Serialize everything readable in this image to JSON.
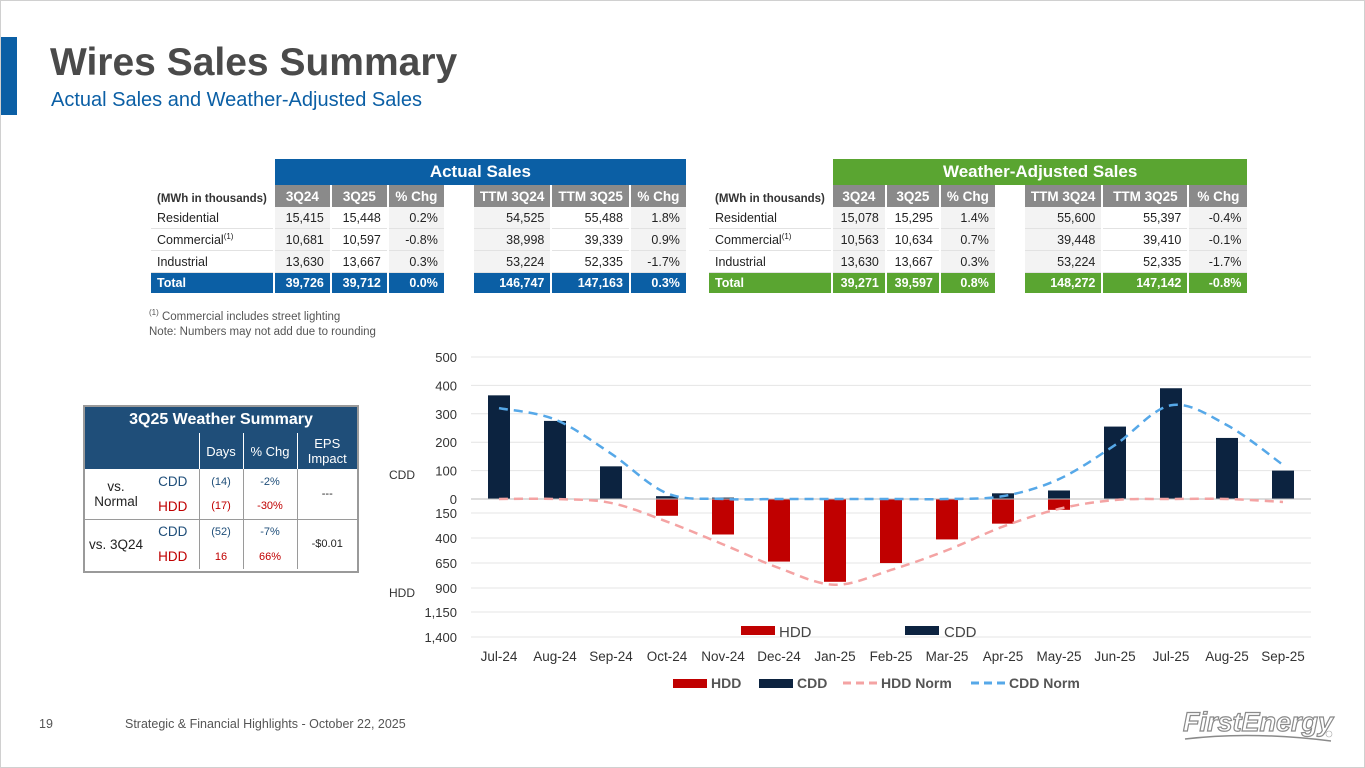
{
  "header": {
    "title": "Wires Sales Summary",
    "subtitle": "Actual Sales and Weather-Adjusted Sales"
  },
  "actual": {
    "unit_label": "(MWh in thousands)",
    "banner": "Actual Sales",
    "cols": [
      "3Q24",
      "3Q25",
      "% Chg",
      "TTM 3Q24",
      "TTM 3Q25",
      "% Chg"
    ],
    "rows": [
      {
        "label": "Residential",
        "sup": "",
        "v": [
          "15,415",
          "15,448",
          "0.2%",
          "54,525",
          "55,488",
          "1.8%"
        ]
      },
      {
        "label": "Commercial",
        "sup": "(1)",
        "v": [
          "10,681",
          "10,597",
          "-0.8%",
          "38,998",
          "39,339",
          "0.9%"
        ]
      },
      {
        "label": "Industrial",
        "sup": "",
        "v": [
          "13,630",
          "13,667",
          "0.3%",
          "53,224",
          "52,335",
          "-1.7%"
        ]
      }
    ],
    "total": {
      "label": "Total",
      "v": [
        "39,726",
        "39,712",
        "0.0%",
        "146,747",
        "147,163",
        "0.3%"
      ]
    }
  },
  "weather_adj": {
    "unit_label": "(MWh in thousands)",
    "banner": "Weather-Adjusted Sales",
    "cols": [
      "3Q24",
      "3Q25",
      "% Chg",
      "TTM 3Q24",
      "TTM 3Q25",
      "% Chg"
    ],
    "rows": [
      {
        "label": "Residential",
        "sup": "",
        "v": [
          "15,078",
          "15,295",
          "1.4%",
          "55,600",
          "55,397",
          "-0.4%"
        ]
      },
      {
        "label": "Commercial",
        "sup": "(1)",
        "v": [
          "10,563",
          "10,634",
          "0.7%",
          "39,448",
          "39,410",
          "-0.1%"
        ]
      },
      {
        "label": "Industrial",
        "sup": "",
        "v": [
          "13,630",
          "13,667",
          "0.3%",
          "53,224",
          "52,335",
          "-1.7%"
        ]
      }
    ],
    "total": {
      "label": "Total",
      "v": [
        "39,271",
        "39,597",
        "0.8%",
        "148,272",
        "147,142",
        "-0.8%"
      ]
    }
  },
  "footnotes": {
    "sup": "(1)",
    "note1": " Commercial includes street lighting",
    "note2": "Note: Numbers may not add due to rounding"
  },
  "weather_summary": {
    "title": "3Q25 Weather Summary",
    "cols": [
      "Days",
      "% Chg",
      "EPS Impact"
    ],
    "groups": [
      {
        "label": "vs. Normal",
        "rows": [
          {
            "type": "CDD",
            "days": "(14)",
            "chg": "-2%"
          },
          {
            "type": "HDD",
            "days": "(17)",
            "chg": "-30%"
          }
        ],
        "eps": "---"
      },
      {
        "label": "vs. 3Q24",
        "rows": [
          {
            "type": "CDD",
            "days": "(52)",
            "chg": "-7%"
          },
          {
            "type": "HDD",
            "days": "16",
            "chg": "66%"
          }
        ],
        "eps": "-$0.01"
      }
    ]
  },
  "chart_data": {
    "type": "bar",
    "categories": [
      "Jul-24",
      "Aug-24",
      "Sep-24",
      "Oct-24",
      "Nov-24",
      "Dec-24",
      "Jan-25",
      "Feb-25",
      "Mar-25",
      "Apr-25",
      "May-25",
      "Jun-25",
      "Jul-25",
      "Aug-25",
      "Sep-25"
    ],
    "series": [
      {
        "name": "CDD",
        "type": "bar",
        "color": "#0c2340",
        "values": [
          365,
          275,
          115,
          10,
          5,
          0,
          0,
          0,
          0,
          20,
          30,
          255,
          390,
          215,
          100
        ]
      },
      {
        "name": "HDD",
        "type": "bar",
        "color": "#c00000",
        "values": [
          0,
          0,
          5,
          170,
          360,
          635,
          840,
          650,
          410,
          250,
          110,
          5,
          0,
          5,
          5
        ]
      },
      {
        "name": "HDD Norm",
        "type": "line",
        "color": "#f4a3a3",
        "values": [
          0,
          0,
          40,
          230,
          460,
          700,
          870,
          720,
          520,
          280,
          100,
          10,
          0,
          0,
          30
        ]
      },
      {
        "name": "CDD Norm",
        "type": "line",
        "color": "#56a8e8",
        "values": [
          320,
          280,
          160,
          20,
          0,
          0,
          0,
          0,
          0,
          10,
          70,
          190,
          330,
          260,
          120
        ]
      }
    ],
    "cdd_axis": {
      "label": "CDD",
      "ticks": [
        "500",
        "400",
        "300",
        "200",
        "100",
        "0"
      ],
      "range": [
        0,
        500
      ]
    },
    "hdd_axis": {
      "label": "HDD",
      "ticks": [
        "150",
        "400",
        "650",
        "900",
        "1,150",
        "1,400"
      ],
      "range": [
        0,
        1400
      ]
    },
    "inner_legend": [
      "HDD",
      "CDD"
    ],
    "legend": [
      "HDD",
      "CDD",
      "HDD Norm",
      "CDD Norm"
    ]
  },
  "footer": {
    "page": "19",
    "text": "Strategic & Financial Highlights - October 22, 2025",
    "logo": "FirstEnergy"
  }
}
